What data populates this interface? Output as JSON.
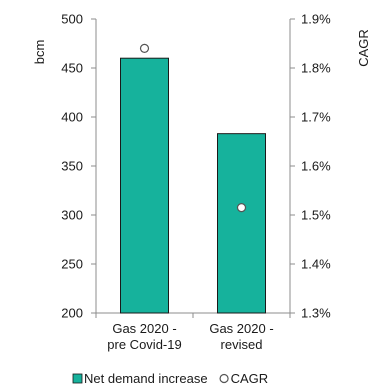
{
  "chart_data": {
    "type": "bar",
    "categories": [
      [
        "Gas 2020 -",
        "pre Covid-19"
      ],
      [
        "Gas 2020 -",
        "revised"
      ]
    ],
    "series": [
      {
        "name": "Net demand increase",
        "axis": "left",
        "mark": "bar",
        "values": [
          460,
          383
        ],
        "color": "#16b29c",
        "edge_color": "#1a1a1a"
      },
      {
        "name": "CAGR",
        "axis": "right",
        "mark": "marker",
        "marker": "hollow-circle",
        "values": [
          1.84,
          1.515
        ],
        "color": "#ffffff",
        "edge_color": "#555555"
      }
    ],
    "ylabel": "bcm",
    "y2label": "CAGR",
    "ylim": [
      200,
      500
    ],
    "yticks": [
      "200",
      "250",
      "300",
      "350",
      "400",
      "450",
      "500"
    ],
    "y2lim": [
      1.3,
      1.9
    ],
    "y2ticks": [
      "1.3%",
      "1.4%",
      "1.5%",
      "1.6%",
      "1.7%",
      "1.8%",
      "1.9%"
    ],
    "grid": false,
    "legend_position": "bottom"
  }
}
